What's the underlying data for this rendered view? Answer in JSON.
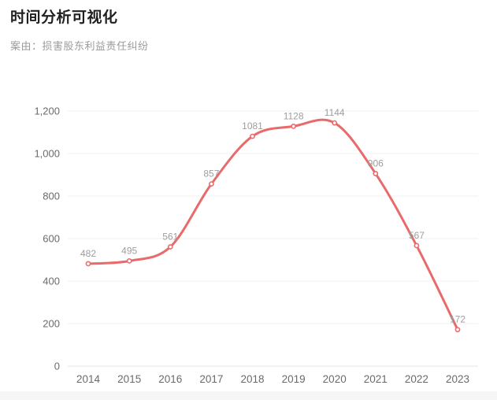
{
  "page": {
    "title": "时间分析可视化",
    "subtitle": "案由：损害股东利益责任纠纷"
  },
  "chart_data": {
    "type": "line",
    "smooth": true,
    "title": "时间分析可视化",
    "subtitle": "案由：损害股东利益责任纠纷",
    "categories": [
      "2014",
      "2015",
      "2016",
      "2017",
      "2018",
      "2019",
      "2020",
      "2021",
      "2022",
      "2023"
    ],
    "values": [
      482,
      495,
      561,
      857,
      1081,
      1128,
      1144,
      906,
      567,
      172
    ],
    "data_labels": [
      "482",
      "495",
      "561",
      "857",
      "1081",
      "1128",
      "1144",
      "906",
      "567",
      "172"
    ],
    "xlabel": "",
    "ylabel": "",
    "ylim": [
      0,
      1200
    ],
    "yticks": [
      0,
      200,
      400,
      600,
      800,
      1000,
      1200
    ],
    "ytick_labels": [
      "0",
      "200",
      "400",
      "600",
      "800",
      "1,000",
      "1,200"
    ],
    "grid": true,
    "legend": false,
    "colors": {
      "line": "#e96a6a",
      "marker_fill": "#ffffff",
      "data_label": "#9e9e9e",
      "axis_label": "#6b6b6b",
      "gridline": "#f0f0f0",
      "axis_line": "#e4e4e4"
    }
  }
}
